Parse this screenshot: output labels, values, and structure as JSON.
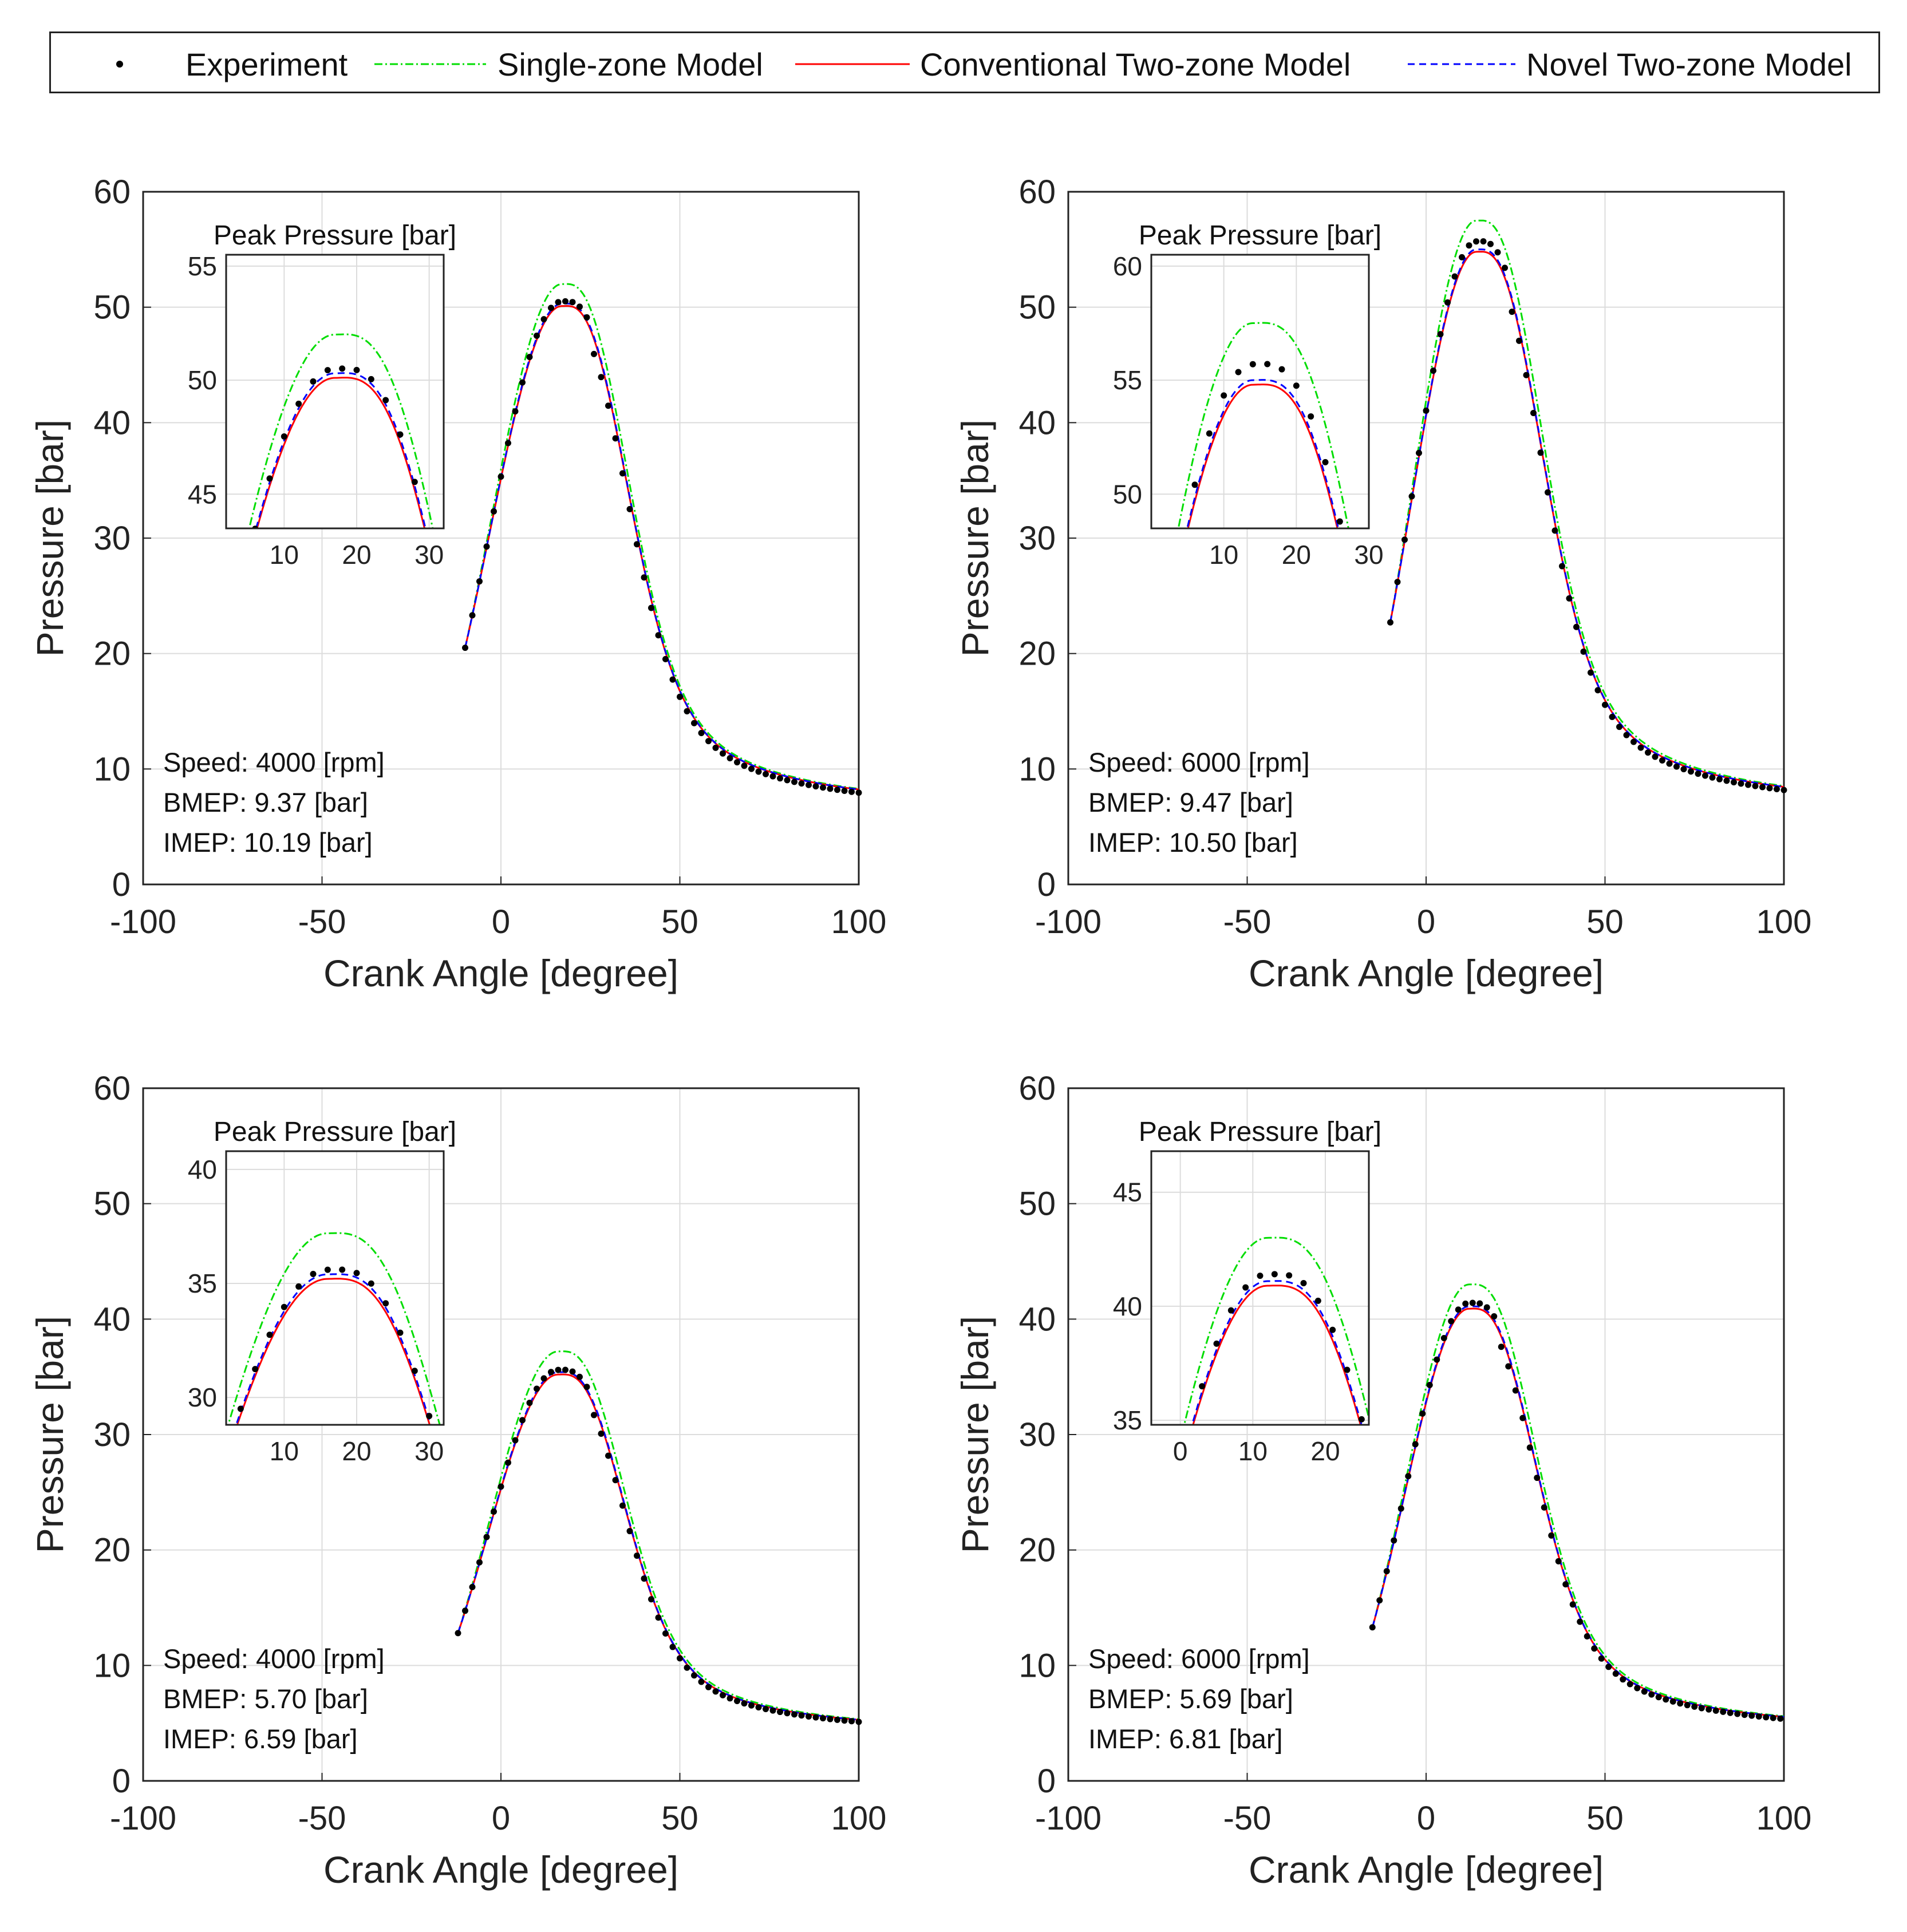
{
  "legend": {
    "items": [
      {
        "label": "Experiment",
        "kind": "marker",
        "color": "#000000"
      },
      {
        "label": "Single-zone Model",
        "kind": "dashdot",
        "color": "#00dd00"
      },
      {
        "label": "Conventional Two-zone Model",
        "kind": "solid",
        "color": "#ff0000"
      },
      {
        "label": "Novel Two-zone Model",
        "kind": "dashed",
        "color": "#0000ff"
      }
    ]
  },
  "chart_data": [
    {
      "type": "line",
      "xlabel": "Crank Angle [degree]",
      "ylabel": "Pressure [bar]",
      "xlim": [
        -100,
        100
      ],
      "ylim": [
        0,
        60
      ],
      "xticks": [
        -100,
        -50,
        0,
        50,
        100
      ],
      "yticks": [
        0,
        10,
        20,
        30,
        40,
        50,
        60
      ],
      "grid": true,
      "info": [
        "Speed: 4000 [rpm]",
        "BMEP: 9.37 [bar]",
        "IMEP:  10.19 [bar]"
      ],
      "model": {
        "start": -10,
        "p0": 20.5,
        "peak_angle": 17,
        "peak_exp": 50.5,
        "peak_single": 52.0,
        "peak_conv": 50.1,
        "peak_novel": 50.3,
        "end": 6.8
      },
      "inset": {
        "title": "Peak Pressure [bar]",
        "xlim": [
          2,
          32
        ],
        "ylim": [
          43.5,
          55.5
        ],
        "xticks": [
          10,
          20,
          30
        ],
        "yticks": [
          45,
          50,
          55
        ]
      }
    },
    {
      "type": "line",
      "xlabel": "Crank Angle [degree]",
      "ylabel": "Pressure [bar]",
      "xlim": [
        -100,
        100
      ],
      "ylim": [
        0,
        60
      ],
      "xticks": [
        -100,
        -50,
        0,
        50,
        100
      ],
      "yticks": [
        0,
        10,
        20,
        30,
        40,
        50,
        60
      ],
      "grid": true,
      "info": [
        "Speed: 6000 [rpm]",
        "BMEP: 9.47 [bar]",
        "IMEP:  10.50 [bar]"
      ],
      "model": {
        "start": -10,
        "p0": 22.7,
        "peak_angle": 14,
        "peak_exp": 55.7,
        "peak_single": 57.5,
        "peak_conv": 54.8,
        "peak_novel": 55.0,
        "end": 7.0
      },
      "inset": {
        "title": "Peak Pressure [bar]",
        "xlim": [
          0,
          30
        ],
        "ylim": [
          48.5,
          60.5
        ],
        "xticks": [
          10,
          20,
          30
        ],
        "yticks": [
          50,
          55,
          60
        ]
      }
    },
    {
      "type": "line",
      "xlabel": "Crank Angle [degree]",
      "ylabel": "Pressure [bar]",
      "xlim": [
        -100,
        100
      ],
      "ylim": [
        0,
        60
      ],
      "xticks": [
        -100,
        -50,
        0,
        50,
        100
      ],
      "yticks": [
        0,
        10,
        20,
        30,
        40,
        50,
        60
      ],
      "grid": true,
      "info": [
        "Speed: 4000 [rpm]",
        "BMEP: 5.70 [bar]",
        "IMEP:  6.59 [bar]"
      ],
      "model": {
        "start": -12,
        "p0": 12.8,
        "peak_angle": 16,
        "peak_exp": 35.6,
        "peak_single": 37.2,
        "peak_conv": 35.2,
        "peak_novel": 35.4,
        "end": 4.3
      },
      "inset": {
        "title": "Peak Pressure [bar]",
        "xlim": [
          2,
          32
        ],
        "ylim": [
          28.8,
          40.8
        ],
        "xticks": [
          10,
          20,
          30
        ],
        "yticks": [
          30,
          35,
          40
        ]
      }
    },
    {
      "type": "line",
      "xlabel": "Crank Angle [degree]",
      "ylabel": "Pressure [bar]",
      "xlim": [
        -100,
        100
      ],
      "ylim": [
        0,
        60
      ],
      "xticks": [
        -100,
        -50,
        0,
        50,
        100
      ],
      "yticks": [
        0,
        10,
        20,
        30,
        40,
        50,
        60
      ],
      "grid": true,
      "info": [
        "Speed: 6000 [rpm]",
        "BMEP: 5.69 [bar]",
        "IMEP:  6.81 [bar]"
      ],
      "model": {
        "start": -15,
        "p0": 13.3,
        "peak_angle": 12,
        "peak_exp": 41.4,
        "peak_single": 43.0,
        "peak_conv": 40.9,
        "peak_novel": 41.1,
        "end": 4.5
      },
      "inset": {
        "title": "Peak Pressure [bar]",
        "xlim": [
          -4,
          26
        ],
        "ylim": [
          34.8,
          46.8
        ],
        "xticks": [
          0,
          10,
          20
        ],
        "yticks": [
          35,
          40,
          45
        ]
      }
    }
  ]
}
